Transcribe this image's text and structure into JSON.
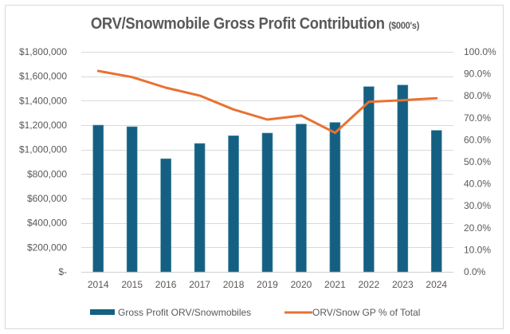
{
  "chart_data": {
    "type": "bar",
    "title": "ORV/Snowmobile Gross Profit Contribution",
    "title_unit": "($000's)",
    "xlabel": "",
    "ylabel": "",
    "y2label": "",
    "categories": [
      "2014",
      "2015",
      "2016",
      "2017",
      "2018",
      "2019",
      "2020",
      "2021",
      "2022",
      "2023",
      "2024"
    ],
    "series": [
      {
        "name": "Gross Profit ORV/Snowmobiles",
        "type": "bar",
        "axis": "left",
        "color": "#156082",
        "values": [
          1200000,
          1187000,
          925000,
          1050000,
          1113000,
          1135000,
          1209000,
          1222000,
          1515000,
          1528000,
          1157000
        ]
      },
      {
        "name": "ORV/Snow GP % of Total",
        "type": "line",
        "axis": "right",
        "color": "#E97132",
        "values": [
          91.3,
          88.5,
          83.7,
          80.1,
          73.8,
          69.2,
          71.0,
          63.2,
          77.3,
          78.0,
          78.9
        ]
      }
    ],
    "y_axis": {
      "ylim": [
        0,
        1800000
      ],
      "tick_values": [
        0,
        200000,
        400000,
        600000,
        800000,
        1000000,
        1200000,
        1400000,
        1600000,
        1800000
      ],
      "tick_labels": [
        "$-",
        "$200,000",
        "$400,000",
        "$600,000",
        "$800,000",
        "$1,000,000",
        "$1,200,000",
        "$1,400,000",
        "$1,600,000",
        "$1,800,000"
      ]
    },
    "y2_axis": {
      "ylim": [
        0,
        100
      ],
      "tick_values": [
        0,
        10,
        20,
        30,
        40,
        50,
        60,
        70,
        80,
        90,
        100
      ],
      "tick_labels": [
        "0.0%",
        "10.0%",
        "20.0%",
        "30.0%",
        "40.0%",
        "50.0%",
        "60.0%",
        "70.0%",
        "80.0%",
        "90.0%",
        "100.0%"
      ]
    },
    "grid": true,
    "legend": {
      "position": "bottom",
      "entries": [
        "Gross Profit ORV/Snowmobiles",
        "ORV/Snow GP % of Total"
      ]
    }
  }
}
